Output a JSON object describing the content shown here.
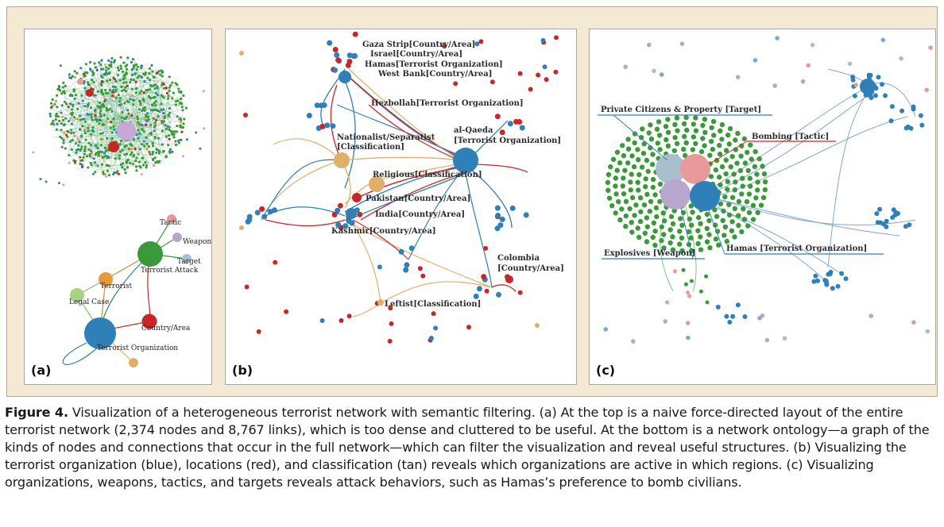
{
  "panels": {
    "a": {
      "letter": "(a)",
      "ontology": {
        "tactic": "Tactic",
        "weapon": "Weapon",
        "target": "Target",
        "terrorist_attack": "Terrorist Attack",
        "terrorist": "Terrorist",
        "legal_case": "Legal Case",
        "country_area": "Country/Area",
        "terrorist_organization": "Terrorist Organization"
      }
    },
    "b": {
      "letter": "(b)",
      "labels": {
        "gaza": "Gaza Strip[Country/Area]",
        "israel": "Israel[Country/Area]",
        "hamas": "Hamas[Terrorist Organization]",
        "westbank": "West Bank[Country/Area]",
        "hezbollah": "Hezbollah[Terrorist Organization]",
        "natsep1": "Nationalist/Separatist",
        "natsep2": "[Classification]",
        "alqaeda1": "al-Qaeda",
        "alqaeda2": "[Terrorist Organization]",
        "religious": "Religious[Classification]",
        "pakistan": "Pakistan[Country/Area]",
        "india": "India[Country/Area]",
        "kashmir": "Kashmir[Country/Area]",
        "colombia1": "Colombia",
        "colombia2": "[Country/Area]",
        "leftist": "Leftist[Classification]"
      }
    },
    "c": {
      "letter": "(c)",
      "labels": {
        "private": "Private Citizens & Property [Target]",
        "bombing": "Bombing [Tactic]",
        "explosives": "Explosives [Weapon]",
        "hamas": "Hamas [Terrorist Organization]"
      }
    }
  },
  "colors": {
    "organization": "#2f7fb8",
    "location": "#d32f2f",
    "classification": "#e0b06a",
    "attack": "#3a9a3a",
    "weapon": "#b9a6cc",
    "tactic": "#e89a9a",
    "target": "#a9c0cc",
    "frame": "#f4e9d3"
  },
  "caption": {
    "label": "Figure 4.",
    "text": " Visualization of a heterogeneous terrorist network with semantic filtering. (a) At the top is a naive force-directed layout of the entire terrorist network (2,374 nodes and 8,767 links), which is too dense and cluttered to be useful. At the bottom is a network ontology—a graph of the kinds of nodes and connections that occur in the full network—which can filter the visualization and reveal useful structures. (b) Visualizing the terrorist organization (blue), locations (red), and classification (tan) reveals which organizations are active in which regions. (c) Visualizing organizations, weapons, tactics, and targets reveals attack behaviors, such as Hamas’s preference to bomb civilians."
  }
}
